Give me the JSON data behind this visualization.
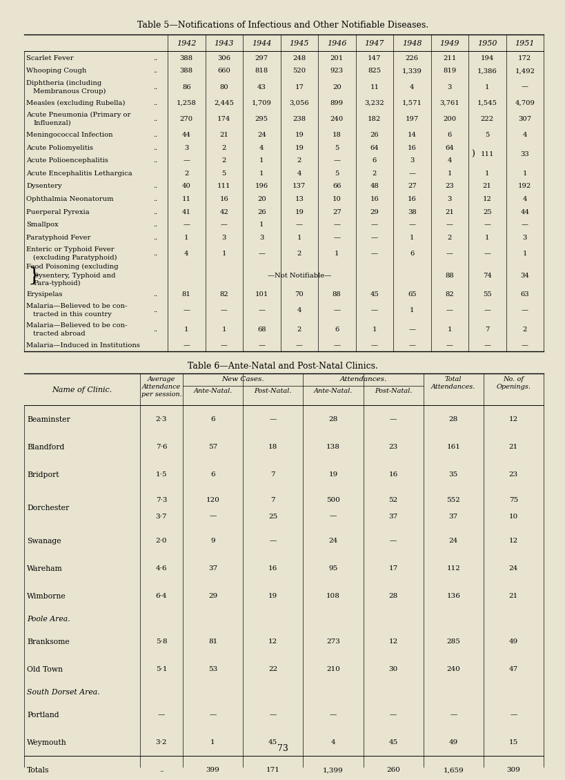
{
  "bg_color": "#e8e4d0",
  "title5": "Table 5—Notifications of Infectious and Other Notifiable Diseases.",
  "title6": "Table 6—Ante-Natal and Post-Natal Clinics.",
  "page_number": "73",
  "table5": {
    "years": [
      "1942",
      "1943",
      "1944",
      "1945",
      "1946",
      "1947",
      "1948",
      "1949",
      "1950",
      "1951"
    ],
    "rows": [
      {
        "label": "Scarlet Fever",
        "label2": "",
        "label3": "",
        "dots": true,
        "not_notifiable": false,
        "combined_row": false,
        "combined_skip": false,
        "values": [
          "388",
          "306",
          "297",
          "248",
          "201",
          "147",
          "226",
          "211",
          "194",
          "172"
        ]
      },
      {
        "label": "Whooping Cough",
        "label2": "",
        "label3": "",
        "dots": true,
        "not_notifiable": false,
        "combined_row": false,
        "combined_skip": false,
        "values": [
          "388",
          "660",
          "818",
          "520",
          "923",
          "825",
          "1,339",
          "819",
          "1,386",
          "1,492"
        ]
      },
      {
        "label": "Diphtheria (including",
        "label2": "Membranous Croup)",
        "label3": "",
        "dots": true,
        "not_notifiable": false,
        "combined_row": false,
        "combined_skip": false,
        "values": [
          "86",
          "80",
          "43",
          "17",
          "20",
          "11",
          "4",
          "3",
          "1",
          "—"
        ]
      },
      {
        "label": "Measles (excluding Rubella)",
        "label2": "",
        "label3": "",
        "dots": true,
        "not_notifiable": false,
        "combined_row": false,
        "combined_skip": false,
        "values": [
          "1,258",
          "2,445",
          "1,709",
          "3,056",
          "899",
          "3,232",
          "1,571",
          "3,761",
          "1,545",
          "4,709"
        ]
      },
      {
        "label": "Acute Pneumonia (Primary or",
        "label2": "Influenzal)",
        "label3": "",
        "dots": true,
        "not_notifiable": false,
        "combined_row": false,
        "combined_skip": false,
        "values": [
          "270",
          "174",
          "295",
          "238",
          "240",
          "182",
          "197",
          "200",
          "222",
          "307"
        ]
      },
      {
        "label": "Meningococcal Infection",
        "label2": "",
        "label3": "",
        "dots": true,
        "not_notifiable": false,
        "combined_row": false,
        "combined_skip": false,
        "values": [
          "44",
          "21",
          "24",
          "19",
          "18",
          "26",
          "14",
          "6",
          "5",
          "4"
        ]
      },
      {
        "label": "Acute Poliomyelitis",
        "label2": "",
        "label3": "",
        "dots": true,
        "not_notifiable": false,
        "combined_row": true,
        "combined_skip": false,
        "values": [
          "3",
          "2",
          "4",
          "19",
          "5",
          "64",
          "16",
          "64",
          "111",
          "33"
        ]
      },
      {
        "label": "Acute Polioencephalitis",
        "label2": "",
        "label3": "",
        "dots": true,
        "not_notifiable": false,
        "combined_row": false,
        "combined_skip": true,
        "values": [
          "—",
          "2",
          "1",
          "2",
          "—",
          "6",
          "3",
          "4",
          "",
          ""
        ]
      },
      {
        "label": "Acute Encephalitis Lethargica",
        "label2": "",
        "label3": "",
        "dots": false,
        "not_notifiable": false,
        "combined_row": false,
        "combined_skip": false,
        "values": [
          "2",
          "5",
          "1",
          "4",
          "5",
          "2",
          "—",
          "1",
          "1",
          "1"
        ]
      },
      {
        "label": "Dysentery",
        "label2": "",
        "label3": "",
        "dots": true,
        "not_notifiable": false,
        "combined_row": false,
        "combined_skip": false,
        "values": [
          "40",
          "111",
          "196",
          "137",
          "66",
          "48",
          "27",
          "23",
          "21",
          "192"
        ]
      },
      {
        "label": "Ophthalmia Neonatorum",
        "label2": "",
        "label3": "",
        "dots": true,
        "not_notifiable": false,
        "combined_row": false,
        "combined_skip": false,
        "values": [
          "11",
          "16",
          "20",
          "13",
          "10",
          "16",
          "16",
          "3",
          "12",
          "4"
        ]
      },
      {
        "label": "Puerperal Pyrexia",
        "label2": "",
        "label3": "",
        "dots": true,
        "not_notifiable": false,
        "combined_row": false,
        "combined_skip": false,
        "values": [
          "41",
          "42",
          "26",
          "19",
          "27",
          "29",
          "38",
          "21",
          "25",
          "44"
        ]
      },
      {
        "label": "Smallpox",
        "label2": "",
        "label3": "",
        "dots": true,
        "not_notifiable": false,
        "combined_row": false,
        "combined_skip": false,
        "values": [
          "—",
          "—",
          "1",
          "—",
          "—",
          "—",
          "—",
          "—",
          "—",
          "—"
        ]
      },
      {
        "label": "Paratyphoid Fever",
        "label2": "",
        "label3": "",
        "dots": true,
        "not_notifiable": false,
        "combined_row": false,
        "combined_skip": false,
        "values": [
          "1",
          "3",
          "3",
          "1",
          "—",
          "—",
          "1",
          "2",
          "1",
          "3"
        ]
      },
      {
        "label": "Enteric or Typhoid Fever",
        "label2": "(excluding Paratyphoid)",
        "label3": "",
        "dots": true,
        "not_notifiable": false,
        "combined_row": false,
        "combined_skip": false,
        "values": [
          "4",
          "1",
          "—",
          "2",
          "1",
          "—",
          "6",
          "—",
          "—",
          "1"
        ]
      },
      {
        "label": "Food Poisoning (excluding",
        "label2": "Dysentery, Typhoid and",
        "label3": "Para-typhoid)",
        "dots": false,
        "not_notifiable": true,
        "combined_row": false,
        "combined_skip": false,
        "values": [
          "",
          "",
          "",
          "",
          "",
          "",
          "",
          "88",
          "74",
          "34"
        ]
      },
      {
        "label": "Erysipelas",
        "label2": "",
        "label3": "",
        "dots": true,
        "not_notifiable": false,
        "combined_row": false,
        "combined_skip": false,
        "values": [
          "81",
          "82",
          "101",
          "70",
          "88",
          "45",
          "65",
          "82",
          "55",
          "63"
        ]
      },
      {
        "label": "Malaria—Believed to be con-",
        "label2": "tracted in this country",
        "label3": "",
        "dots": true,
        "not_notifiable": false,
        "combined_row": false,
        "combined_skip": false,
        "values": [
          "—",
          "—",
          "—",
          "4",
          "—",
          "—",
          "1",
          "—",
          "—",
          "—"
        ]
      },
      {
        "label": "Malaria—Believed to be con-",
        "label2": "tracted abroad",
        "label3": "",
        "dots": true,
        "not_notifiable": false,
        "combined_row": false,
        "combined_skip": false,
        "values": [
          "1",
          "1",
          "68",
          "2",
          "6",
          "1",
          "—",
          "1",
          "7",
          "2"
        ]
      },
      {
        "label": "Malaria—Induced in Institutions",
        "label2": "",
        "label3": "",
        "dots": false,
        "not_notifiable": false,
        "combined_row": false,
        "combined_skip": false,
        "values": [
          "—",
          "—",
          "—",
          "—",
          "—",
          "—",
          "—",
          "—",
          "—",
          "—"
        ]
      }
    ]
  },
  "table6": {
    "rows": [
      {
        "name": "Beaminster",
        "section_header": false,
        "avg": "2·3",
        "nc_an": "6",
        "nc_pn": "—",
        "at_an": "28",
        "at_pn": "—",
        "total": "28",
        "openings": "12"
      },
      {
        "name": "Blandford",
        "section_header": false,
        "avg": "7·6",
        "nc_an": "57",
        "nc_pn": "18",
        "at_an": "138",
        "at_pn": "23",
        "total": "161",
        "openings": "21"
      },
      {
        "name": "Bridport",
        "section_header": false,
        "avg": "1·5",
        "nc_an": "6",
        "nc_pn": "7",
        "at_an": "19",
        "at_pn": "16",
        "total": "35",
        "openings": "23"
      },
      {
        "name": "Dorchester",
        "section_header": false,
        "avg": "7·3\n3·7",
        "nc_an": "120\n—",
        "nc_pn": "7\n25",
        "at_an": "500\n—",
        "at_pn": "52\n37",
        "total": "552\n37",
        "openings": "75\n10"
      },
      {
        "name": "Swanage",
        "section_header": false,
        "avg": "2·0",
        "nc_an": "9",
        "nc_pn": "—",
        "at_an": "24",
        "at_pn": "—",
        "total": "24",
        "openings": "12"
      },
      {
        "name": "Wareham",
        "section_header": false,
        "avg": "4·6",
        "nc_an": "37",
        "nc_pn": "16",
        "at_an": "95",
        "at_pn": "17",
        "total": "112",
        "openings": "24"
      },
      {
        "name": "Wimborne",
        "section_header": false,
        "avg": "6·4",
        "nc_an": "29",
        "nc_pn": "19",
        "at_an": "108",
        "at_pn": "28",
        "total": "136",
        "openings": "21"
      },
      {
        "name": "Poole Area.",
        "section_header": true,
        "avg": "",
        "nc_an": "",
        "nc_pn": "",
        "at_an": "",
        "at_pn": "",
        "total": "",
        "openings": ""
      },
      {
        "name": "Branksome",
        "section_header": false,
        "avg": "5·8",
        "nc_an": "81",
        "nc_pn": "12",
        "at_an": "273",
        "at_pn": "12",
        "total": "285",
        "openings": "49"
      },
      {
        "name": "Old Town",
        "section_header": false,
        "avg": "5·1",
        "nc_an": "53",
        "nc_pn": "22",
        "at_an": "210",
        "at_pn": "30",
        "total": "240",
        "openings": "47"
      },
      {
        "name": "South Dorset Area.",
        "section_header": true,
        "avg": "",
        "nc_an": "",
        "nc_pn": "",
        "at_an": "",
        "at_pn": "",
        "total": "",
        "openings": ""
      },
      {
        "name": "Portland",
        "section_header": false,
        "avg": "—",
        "nc_an": "—",
        "nc_pn": "—",
        "at_an": "—",
        "at_pn": "—",
        "total": "—",
        "openings": "—"
      },
      {
        "name": "Weymouth",
        "section_header": false,
        "avg": "3·2",
        "nc_an": "1",
        "nc_pn": "45",
        "at_an": "4",
        "at_pn": "45",
        "total": "49",
        "openings": "15"
      },
      {
        "name": "Totals",
        "section_header": false,
        "avg": "..",
        "nc_an": "399",
        "nc_pn": "171",
        "at_an": "1,399",
        "at_pn": "260",
        "total": "1,659",
        "openings": "309"
      }
    ]
  }
}
